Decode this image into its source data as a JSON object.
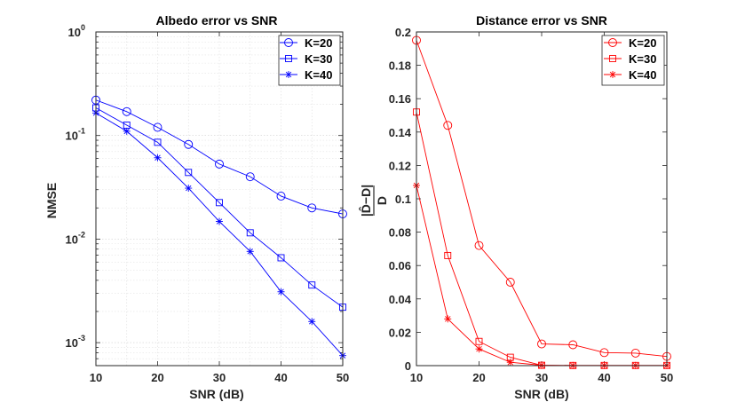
{
  "chart_data": [
    {
      "type": "line",
      "yscale": "log",
      "title": "Albedo error vs SNR",
      "xlabel": "SNR (dB)",
      "ylabel": "NMSE",
      "xlim": [
        10,
        50
      ],
      "ylim": [
        0.0006,
        1
      ],
      "xticks": [
        "10",
        "20",
        "30",
        "40",
        "50"
      ],
      "yticks": [
        {
          "base": "10",
          "exp": "0"
        },
        {
          "base": "10",
          "exp": "-1"
        },
        {
          "base": "10",
          "exp": "-2"
        },
        {
          "base": "10",
          "exp": "-3"
        }
      ],
      "color": "#0000ff",
      "grid": true,
      "legend_position": "top-right",
      "x": [
        10,
        15,
        20,
        25,
        30,
        35,
        40,
        45,
        50
      ],
      "series": [
        {
          "name": "K=20",
          "marker": "circle",
          "values": [
            0.22,
            0.17,
            0.12,
            0.082,
            0.053,
            0.04,
            0.026,
            0.02,
            0.0175
          ]
        },
        {
          "name": "K=30",
          "marker": "square",
          "values": [
            0.185,
            0.126,
            0.086,
            0.044,
            0.0225,
            0.0115,
            0.0066,
            0.0036,
            0.0022
          ]
        },
        {
          "name": "K=40",
          "marker": "star",
          "values": [
            0.165,
            0.11,
            0.061,
            0.031,
            0.0148,
            0.0076,
            0.0031,
            0.0016,
            0.00075
          ]
        }
      ]
    },
    {
      "type": "line",
      "yscale": "linear",
      "title": "Distance error vs SNR",
      "xlabel": "SNR (dB)",
      "ylabel_top": "|D̂−D|",
      "ylabel_bottom": "D",
      "xlim": [
        10,
        50
      ],
      "ylim": [
        0,
        0.2
      ],
      "xticks": [
        "10",
        "20",
        "30",
        "40",
        "50"
      ],
      "yticks": [
        "0",
        "0.02",
        "0.04",
        "0.06",
        "0.08",
        "0.1",
        "0.12",
        "0.14",
        "0.16",
        "0.18",
        "0.2"
      ],
      "color": "#ff0000",
      "grid": false,
      "legend_position": "top-right",
      "x": [
        10,
        15,
        20,
        25,
        30,
        35,
        40,
        45,
        50
      ],
      "series": [
        {
          "name": "K=20",
          "marker": "circle",
          "values": [
            0.195,
            0.144,
            0.072,
            0.05,
            0.013,
            0.0125,
            0.0078,
            0.0075,
            0.0055
          ]
        },
        {
          "name": "K=30",
          "marker": "square",
          "values": [
            0.152,
            0.066,
            0.0145,
            0.005,
            0.0002,
            0.0001,
            0.0001,
            0.0001,
            0.0001
          ]
        },
        {
          "name": "K=40",
          "marker": "star",
          "values": [
            0.108,
            0.028,
            0.01,
            0.002,
            0.0002,
            0.0001,
            0.0001,
            0.0001,
            0.0001
          ]
        }
      ]
    }
  ]
}
